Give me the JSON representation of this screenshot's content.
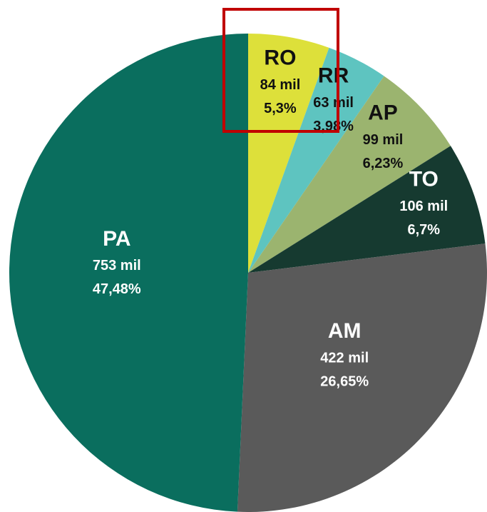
{
  "chart_data": {
    "type": "pie",
    "categories": [
      "RO",
      "RR",
      "AP",
      "TO",
      "AM",
      "PA"
    ],
    "values": [
      5.3,
      3.98,
      6.23,
      6.7,
      26.65,
      47.48
    ],
    "value_labels": [
      "5,3%",
      "3,98%",
      "6,23%",
      "6,7%",
      "26,65%",
      "47,48%"
    ],
    "amounts": [
      84,
      63,
      99,
      106,
      422,
      753
    ],
    "amount_labels": [
      "84 mil",
      "63 mil",
      "99 mil",
      "106 mil",
      "422 mil",
      "753 mil"
    ],
    "colors": [
      "#dde03a",
      "#5ec4c0",
      "#9bb46f",
      "#163a30",
      "#5a5a5a",
      "#0a6e5e"
    ]
  }
}
